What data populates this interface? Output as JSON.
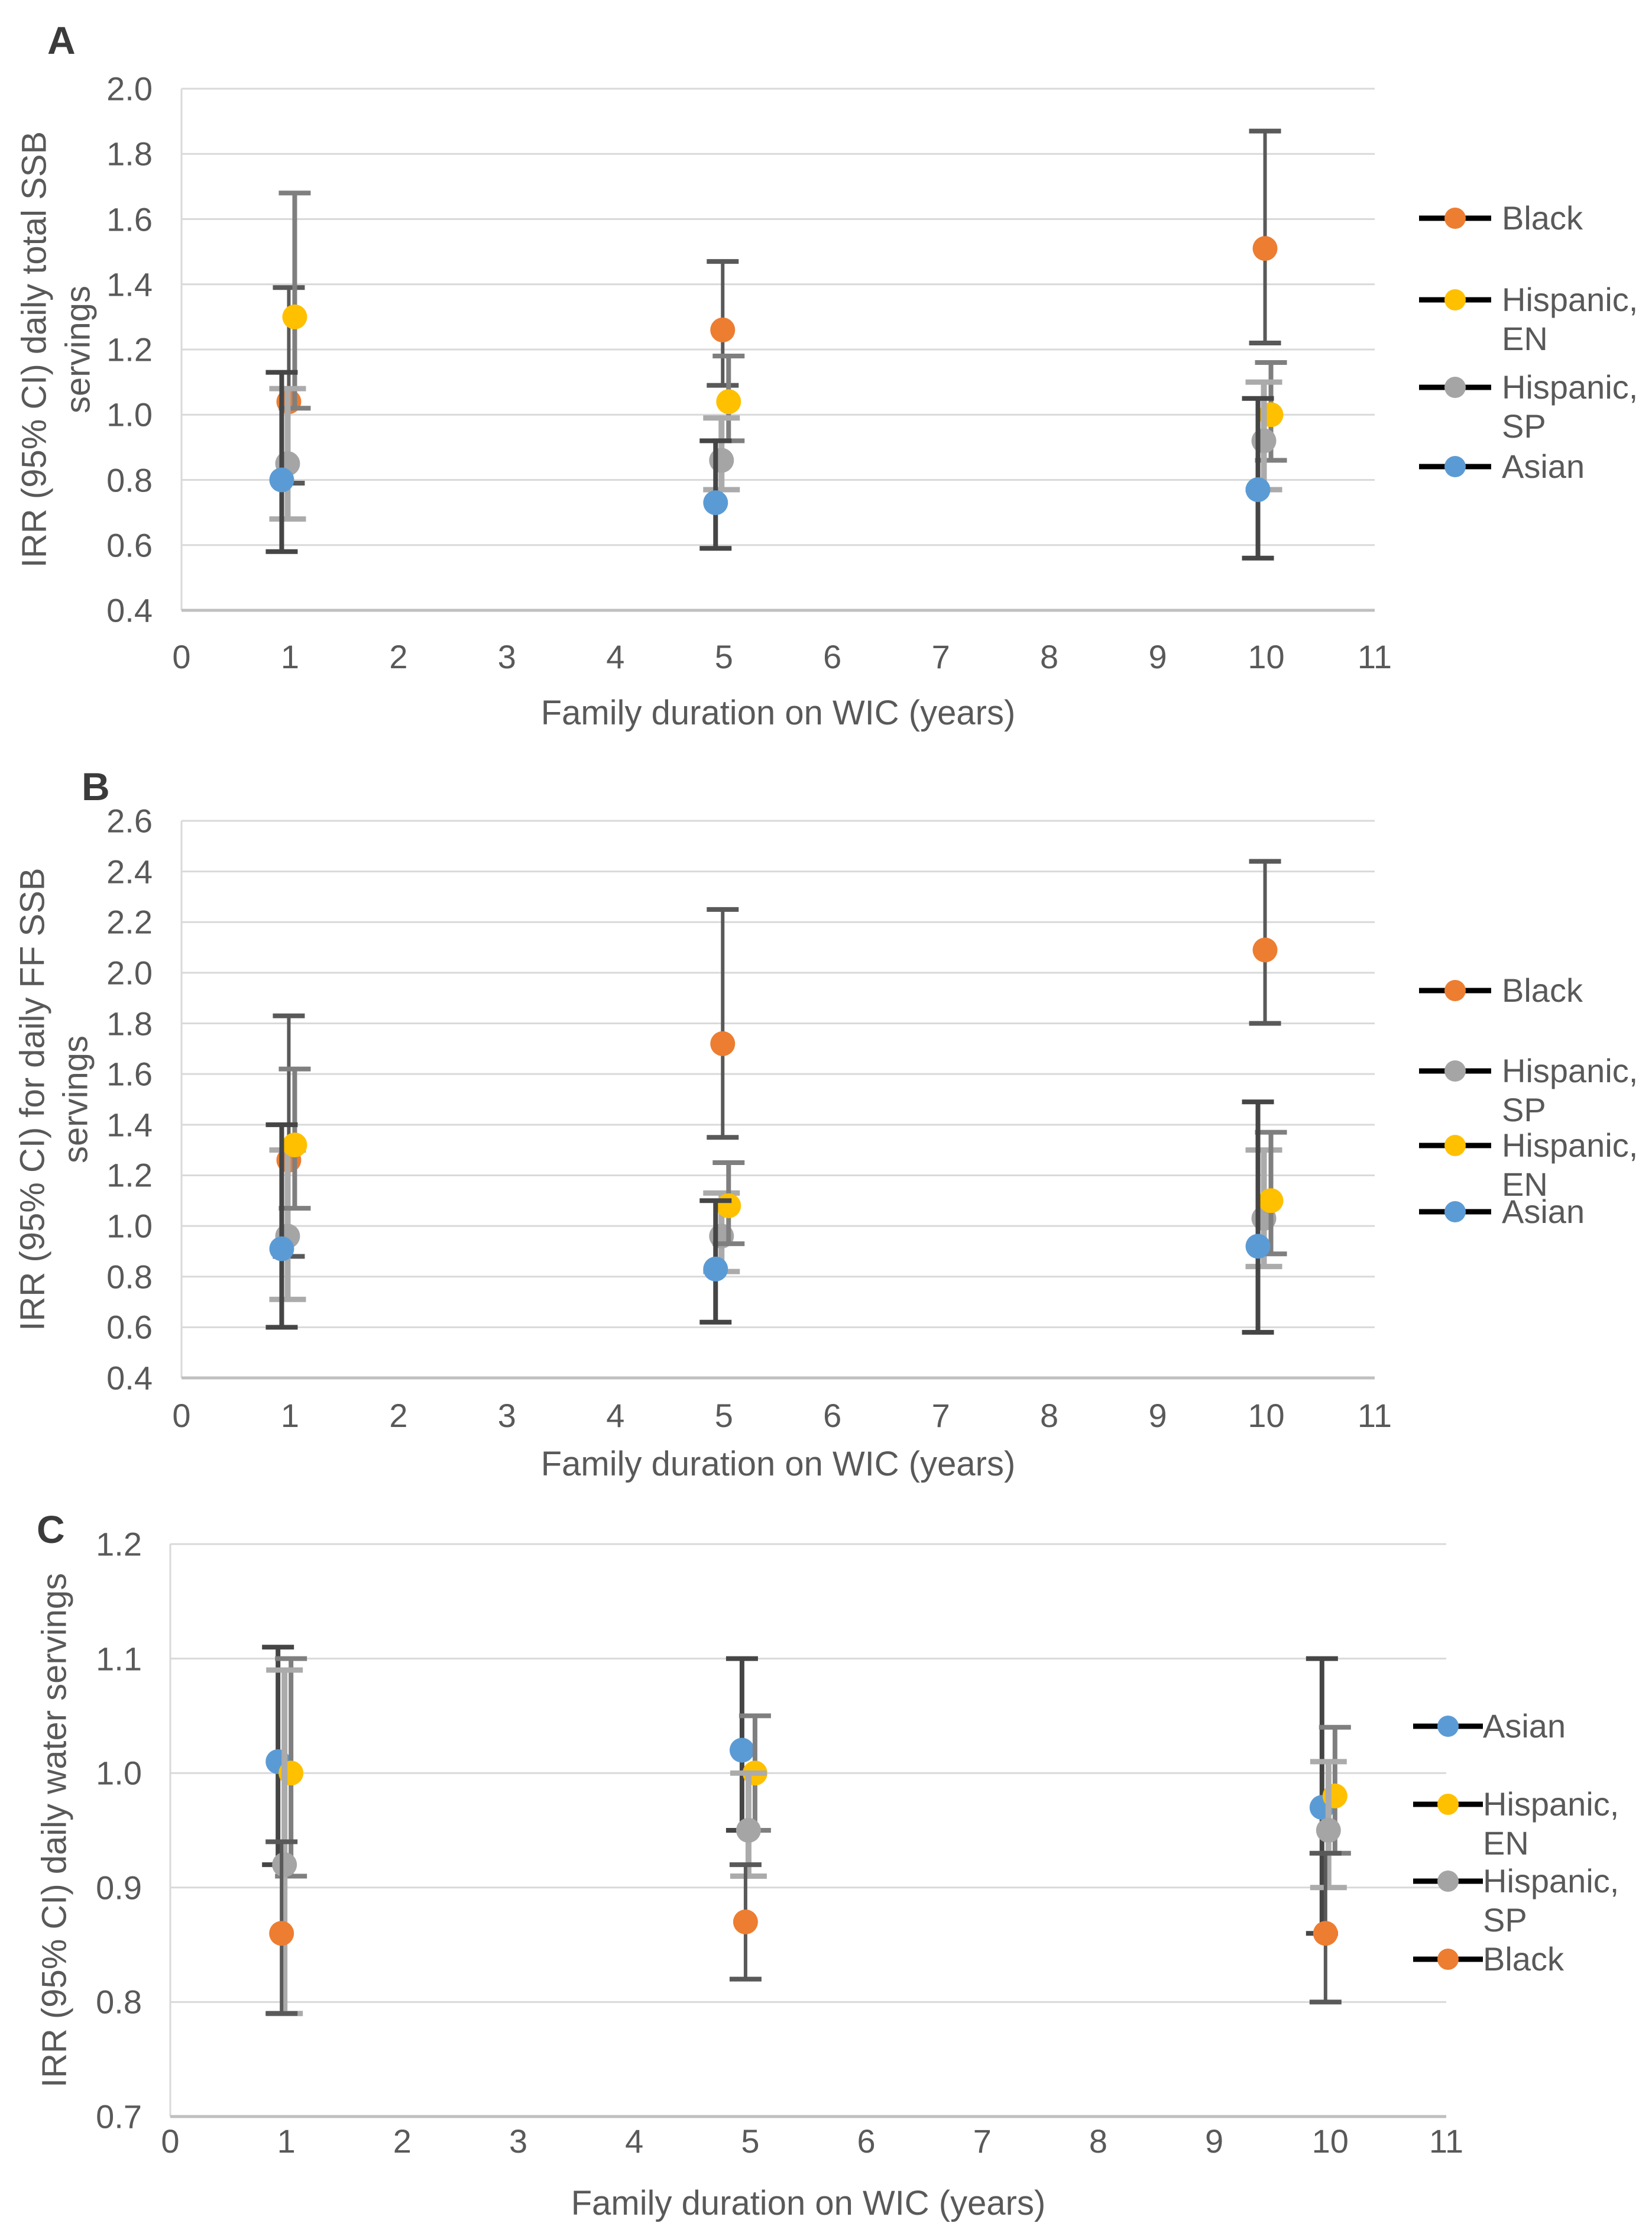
{
  "figure_title": "",
  "x_values": [
    1,
    5,
    10
  ],
  "chart_data": [
    {
      "panel": "A",
      "type": "scatter",
      "ylabel": "IRR (95% CI) daily total SSB servings",
      "ylabel_lines": [
        "IRR (95% CI) daily total SSB",
        "servings"
      ],
      "xlabel": "Family duration on WIC (years)",
      "ylim": [
        0.4,
        2.0
      ],
      "ytick_step": 0.2,
      "xlim": [
        0,
        11
      ],
      "xtick_step": 1,
      "grid": true,
      "legend_position": "right",
      "x": [
        1,
        5,
        10
      ],
      "series": [
        {
          "name": "Black",
          "legend_lines": [
            "Black"
          ],
          "color": "#ED7D31",
          "y": [
            1.04,
            1.26,
            1.51
          ],
          "ci_low": [
            0.79,
            1.09,
            1.22
          ],
          "ci_high": [
            1.39,
            1.47,
            1.87
          ]
        },
        {
          "name": "Hispanic, EN",
          "legend_lines": [
            "Hispanic,",
            "EN"
          ],
          "color": "#FFC000",
          "y": [
            1.3,
            1.04,
            1.0
          ],
          "ci_low": [
            1.02,
            0.92,
            0.86
          ],
          "ci_high": [
            1.68,
            1.18,
            1.16
          ]
        },
        {
          "name": "Hispanic, SP",
          "legend_lines": [
            "Hispanic,",
            "SP"
          ],
          "color": "#A5A5A5",
          "y": [
            0.85,
            0.86,
            0.92
          ],
          "ci_low": [
            0.68,
            0.77,
            0.77
          ],
          "ci_high": [
            1.08,
            0.99,
            1.1
          ]
        },
        {
          "name": "Asian",
          "legend_lines": [
            "Asian"
          ],
          "color": "#5B9BD5",
          "y": [
            0.8,
            0.73,
            0.77
          ],
          "ci_low": [
            0.58,
            0.59,
            0.56
          ],
          "ci_high": [
            1.13,
            0.92,
            1.05
          ]
        }
      ]
    },
    {
      "panel": "B",
      "type": "scatter",
      "ylabel": "IRR (95% CI) for daily FF SSB servings",
      "ylabel_lines": [
        "IRR (95% CI) for daily FF SSB",
        "servings"
      ],
      "xlabel": "Family duration on WIC (years)",
      "ylim": [
        0.4,
        2.6
      ],
      "ytick_step": 0.2,
      "xlim": [
        0,
        11
      ],
      "xtick_step": 1,
      "grid": true,
      "legend_position": "right",
      "x": [
        1,
        5,
        10
      ],
      "series": [
        {
          "name": "Black",
          "legend_lines": [
            "Black"
          ],
          "color": "#ED7D31",
          "y": [
            1.26,
            1.72,
            2.09
          ],
          "ci_low": [
            0.88,
            1.35,
            1.8
          ],
          "ci_high": [
            1.83,
            2.25,
            2.44
          ]
        },
        {
          "name": "Hispanic, SP",
          "legend_lines": [
            "Hispanic,",
            "SP"
          ],
          "color": "#A5A5A5",
          "y": [
            0.96,
            0.96,
            1.03
          ],
          "ci_low": [
            0.71,
            0.82,
            0.84
          ],
          "ci_high": [
            1.3,
            1.13,
            1.3
          ]
        },
        {
          "name": "Hispanic, EN",
          "legend_lines": [
            "Hispanic,",
            "EN"
          ],
          "color": "#FFC000",
          "y": [
            1.32,
            1.08,
            1.1
          ],
          "ci_low": [
            1.07,
            0.93,
            0.89
          ],
          "ci_high": [
            1.62,
            1.25,
            1.37
          ]
        },
        {
          "name": "Asian",
          "legend_lines": [
            "Asian"
          ],
          "color": "#5B9BD5",
          "y": [
            0.91,
            0.83,
            0.92
          ],
          "ci_low": [
            0.6,
            0.62,
            0.58
          ],
          "ci_high": [
            1.4,
            1.1,
            1.49
          ]
        }
      ]
    },
    {
      "panel": "C",
      "type": "scatter",
      "ylabel": "IRR (95% CI) daily water servings",
      "ylabel_lines": [
        "IRR (95% CI) daily water servings"
      ],
      "xlabel": "Family duration on WIC (years)",
      "ylim": [
        0.7,
        1.2
      ],
      "ytick_step": 0.1,
      "xlim": [
        0,
        11
      ],
      "xtick_step": 1,
      "grid": true,
      "legend_position": "right",
      "x": [
        1,
        5,
        10
      ],
      "series": [
        {
          "name": "Asian",
          "legend_lines": [
            "Asian"
          ],
          "color": "#5B9BD5",
          "y": [
            1.01,
            1.02,
            0.97
          ],
          "ci_low": [
            0.92,
            0.95,
            0.86
          ],
          "ci_high": [
            1.11,
            1.1,
            1.1
          ]
        },
        {
          "name": "Hispanic, EN",
          "legend_lines": [
            "Hispanic,",
            "EN"
          ],
          "color": "#FFC000",
          "y": [
            1.0,
            1.0,
            0.98
          ],
          "ci_low": [
            0.91,
            0.95,
            0.93
          ],
          "ci_high": [
            1.1,
            1.05,
            1.04
          ]
        },
        {
          "name": "Hispanic, SP",
          "legend_lines": [
            "Hispanic,",
            "SP"
          ],
          "color": "#A5A5A5",
          "y": [
            0.92,
            0.95,
            0.95
          ],
          "ci_low": [
            0.79,
            0.91,
            0.9
          ],
          "ci_high": [
            1.09,
            1.0,
            1.01
          ]
        },
        {
          "name": "Black",
          "legend_lines": [
            "Black"
          ],
          "color": "#ED7D31",
          "y": [
            0.86,
            0.87,
            0.86
          ],
          "ci_low": [
            0.79,
            0.82,
            0.8
          ],
          "ci_high": [
            0.94,
            0.92,
            0.93
          ]
        }
      ]
    }
  ]
}
